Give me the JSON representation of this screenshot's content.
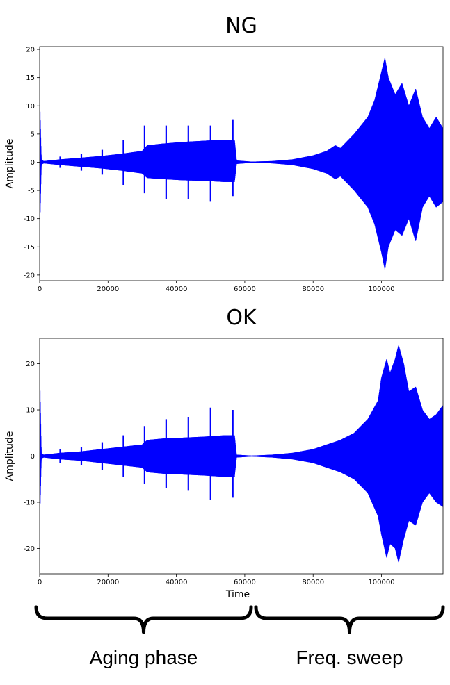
{
  "chart_data": [
    {
      "type": "area",
      "title": "NG",
      "xlabel": "",
      "ylabel": "Amplitude",
      "xlim": [
        0,
        118000
      ],
      "ylim": [
        -21,
        20.5
      ],
      "xticks": [
        0,
        20000,
        40000,
        60000,
        80000,
        100000
      ],
      "yticks": [
        20,
        15,
        10,
        5,
        0,
        -5,
        -10,
        -15,
        -20
      ],
      "color": "#0000ff",
      "series": [
        {
          "envelope_x": [
            0,
            500,
            1200,
            6000,
            12000,
            18000,
            24000,
            30000,
            31500,
            36000,
            42000,
            48000,
            54000,
            57000,
            57600,
            62000,
            68000,
            74000,
            80000,
            84000,
            86500,
            88000,
            92000,
            96000,
            98000,
            100000,
            101000,
            102000,
            104000,
            106000,
            108000,
            110000,
            112000,
            114000,
            116000,
            118000
          ],
          "envelope_upper": [
            12,
            0.4,
            0.2,
            0.5,
            0.8,
            1.1,
            1.5,
            2,
            3,
            3.3,
            3.6,
            3.8,
            4,
            4,
            0.3,
            0.1,
            0.2,
            0.5,
            1.2,
            2,
            3,
            2.5,
            5,
            8,
            11,
            16,
            18.5,
            15,
            12,
            14,
            10,
            13,
            8,
            6,
            8,
            6
          ],
          "envelope_lower": [
            -13,
            -0.4,
            -0.2,
            -0.5,
            -0.8,
            -1.1,
            -1.5,
            -2,
            -2.8,
            -3,
            -3.2,
            -3.3,
            -3.5,
            -3.5,
            -0.3,
            -0.1,
            -0.2,
            -0.5,
            -1.2,
            -2,
            -3,
            -2.5,
            -5,
            -8,
            -11,
            -16,
            -19,
            -15,
            -12,
            -13,
            -10,
            -14,
            -8,
            -6,
            -8,
            -7
          ],
          "spikes": [
            {
              "x": 6000,
              "top": 1,
              "bottom": -1
            },
            {
              "x": 12200,
              "top": 1.5,
              "bottom": -1.5
            },
            {
              "x": 18300,
              "top": 2.2,
              "bottom": -2.2
            },
            {
              "x": 24500,
              "top": 4,
              "bottom": -4
            },
            {
              "x": 30700,
              "top": 6.5,
              "bottom": -5.5
            },
            {
              "x": 37000,
              "top": 6.5,
              "bottom": -6.5
            },
            {
              "x": 43500,
              "top": 6.5,
              "bottom": -6.5
            },
            {
              "x": 50000,
              "top": 6.5,
              "bottom": -7
            },
            {
              "x": 56500,
              "top": 7.5,
              "bottom": -6
            }
          ]
        }
      ]
    },
    {
      "type": "area",
      "title": "OK",
      "xlabel": "Time",
      "ylabel": "Amplitude",
      "xlim": [
        0,
        118000
      ],
      "ylim": [
        -25.5,
        25.5
      ],
      "xticks": [
        0,
        20000,
        40000,
        60000,
        80000,
        100000
      ],
      "yticks": [
        20,
        10,
        0,
        -10,
        -20
      ],
      "color": "#0000ff",
      "series": [
        {
          "envelope_x": [
            0,
            500,
            1200,
            6000,
            12000,
            18000,
            24000,
            30000,
            31500,
            36000,
            42000,
            48000,
            54000,
            57000,
            57600,
            62000,
            68000,
            74000,
            80000,
            84000,
            88000,
            92000,
            96000,
            99000,
            100000,
            101500,
            102500,
            104000,
            105000,
            106500,
            108000,
            110000,
            112000,
            114000,
            116000,
            118000
          ],
          "envelope_upper": [
            19,
            0.5,
            0.3,
            0.7,
            1,
            1.5,
            2,
            2.5,
            3.5,
            3.8,
            4,
            4.2,
            4.5,
            4.5,
            0.3,
            0.1,
            0.3,
            0.7,
            1.5,
            2.5,
            3.5,
            5,
            8,
            12,
            17,
            21,
            18,
            21,
            24,
            20,
            14,
            15,
            10,
            8,
            9,
            11
          ],
          "envelope_lower": [
            -15,
            -0.5,
            -0.3,
            -0.7,
            -1,
            -1.5,
            -2,
            -2.5,
            -3.5,
            -3.8,
            -4,
            -4.2,
            -4.5,
            -4.5,
            -0.3,
            -0.1,
            -0.3,
            -0.7,
            -1.5,
            -2.5,
            -3.5,
            -5,
            -8,
            -13,
            -17,
            -22,
            -19,
            -20,
            -23,
            -18,
            -14,
            -15,
            -10,
            -8,
            -10,
            -11
          ],
          "spikes": [
            {
              "x": 6000,
              "top": 1.5,
              "bottom": -1.5
            },
            {
              "x": 12200,
              "top": 2,
              "bottom": -2
            },
            {
              "x": 18300,
              "top": 3,
              "bottom": -3
            },
            {
              "x": 24500,
              "top": 4.5,
              "bottom": -4.5
            },
            {
              "x": 30700,
              "top": 6.5,
              "bottom": -6
            },
            {
              "x": 37000,
              "top": 8,
              "bottom": -7
            },
            {
              "x": 43500,
              "top": 8.5,
              "bottom": -7.5
            },
            {
              "x": 50000,
              "top": 10.5,
              "bottom": -9.5
            },
            {
              "x": 56500,
              "top": 10,
              "bottom": -9
            }
          ]
        }
      ]
    }
  ],
  "phases": [
    {
      "label": "Aging phase",
      "x_start": 0,
      "x_end": 59000
    },
    {
      "label": "Freq. sweep",
      "x_start": 60000,
      "x_end": 118000
    }
  ]
}
